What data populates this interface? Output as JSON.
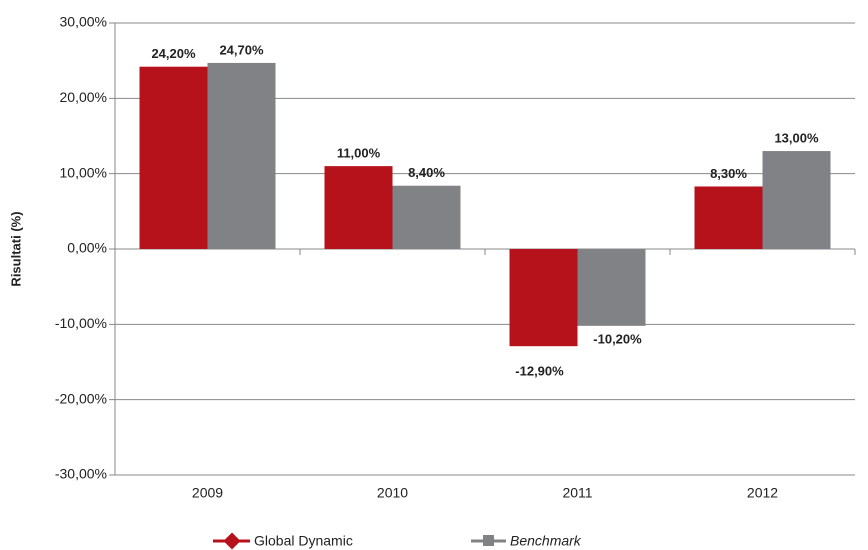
{
  "chart_data": {
    "type": "bar",
    "ylabel": "Risultati (%)",
    "categories": [
      "2009",
      "2010",
      "2011",
      "2012"
    ],
    "series": [
      {
        "name": "Global Dynamic",
        "color": "#b5121b",
        "values": [
          24.2,
          11.0,
          -12.9,
          8.3
        ],
        "value_labels": [
          "24,20%",
          "11,00%",
          "-12,90%",
          "8,30%"
        ]
      },
      {
        "name": "Benchmark",
        "color": "#808285",
        "values": [
          24.7,
          8.4,
          -10.2,
          13.0
        ],
        "value_labels": [
          "24,70%",
          "8,40%",
          "-10,20%",
          "13,00%"
        ]
      }
    ],
    "ylim": [
      -30,
      30
    ],
    "yticks": [
      {
        "value": -30,
        "label": "-30,00%"
      },
      {
        "value": -20,
        "label": "-20,00%"
      },
      {
        "value": -10,
        "label": "-10,00%"
      },
      {
        "value": 0,
        "label": "0,00%"
      },
      {
        "value": 10,
        "label": "10,00%"
      },
      {
        "value": 20,
        "label": "20,00%"
      },
      {
        "value": 30,
        "label": "30,00%"
      }
    ],
    "grid": true
  }
}
